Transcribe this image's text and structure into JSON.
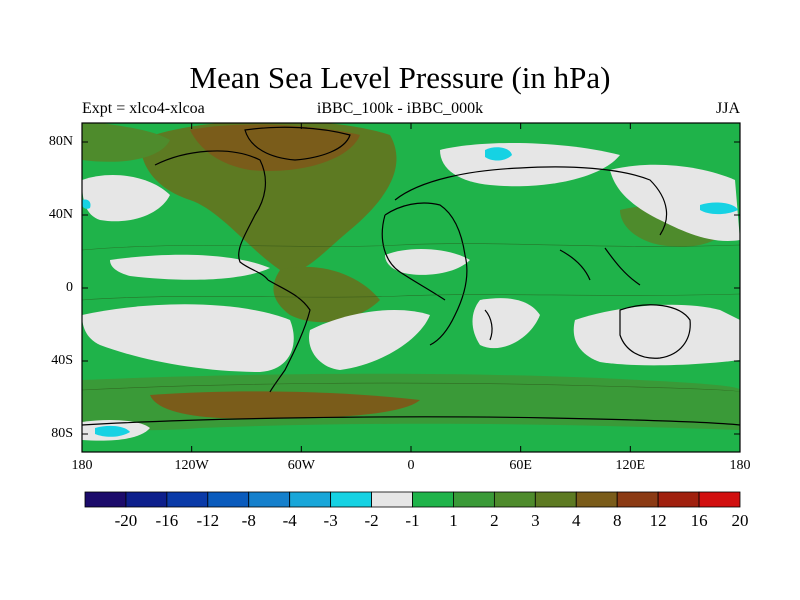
{
  "title": "Mean Sea Level Pressure (in hPa)",
  "left_subtitle": "Expt = xlco4-xlcoa",
  "center_subtitle": "iBBC_100k - iBBC_000k",
  "right_subtitle": "JJA",
  "lat_ticks": [
    "80N",
    "40N",
    "0",
    "40S",
    "80S"
  ],
  "lon_ticks": [
    "180",
    "120W",
    "60W",
    "0",
    "60E",
    "120E",
    "180"
  ],
  "colorbar": {
    "labels": [
      "-20",
      "-16",
      "-12",
      "-8",
      "-4",
      "-3",
      "-2",
      "-1",
      "1",
      "2",
      "3",
      "4",
      "8",
      "12",
      "16",
      "20"
    ],
    "colors": [
      "#1c0b6b",
      "#0d1f8c",
      "#0a3aa8",
      "#0a5bbd",
      "#1580cc",
      "#18a6d9",
      "#16d2e3",
      "#e6e6e6",
      "#1fb34a",
      "#3a9a38",
      "#4e8b2c",
      "#5d7a22",
      "#7a5c1a",
      "#8b3a14",
      "#a0200e",
      "#d10f0f"
    ]
  },
  "colors": {
    "land_bg": "#1fb34a",
    "neutral": "#e6e6e6",
    "level3": "#3a9a38",
    "level4": "#5d7a22",
    "level8": "#7a5c1a",
    "negative": "#16d2e3"
  }
}
